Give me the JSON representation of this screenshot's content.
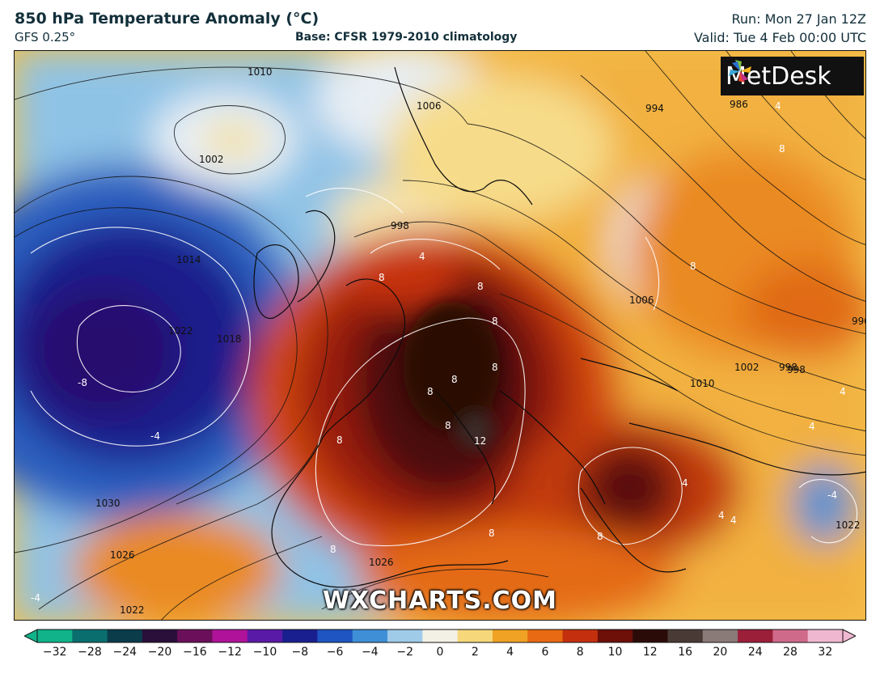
{
  "header": {
    "title": "850 hPa Temperature Anomaly (°C)",
    "model": "GFS 0.25°",
    "base": "Base: CFSR 1979-2010 climatology",
    "run": "Run: Mon 27 Jan 12Z",
    "valid": "Valid: Tue 4 Feb 00:00 UTC"
  },
  "logo": {
    "text": "MetDesk",
    "icon": "metdesk-pinwheel-icon"
  },
  "watermark": "WXCHARTS.COM",
  "colorbar": {
    "ticks": [
      "−32",
      "−28",
      "−24",
      "−20",
      "−16",
      "−12",
      "−10",
      "−8",
      "−6",
      "−4",
      "−2",
      "0",
      "2",
      "4",
      "6",
      "8",
      "10",
      "12",
      "16",
      "20",
      "24",
      "28",
      "32"
    ],
    "colors": [
      "#10b38a",
      "#0b6e6e",
      "#0a3c4a",
      "#2a0f3a",
      "#6b0f5a",
      "#b0129a",
      "#5a1aa8",
      "#1a1f8f",
      "#1f55c2",
      "#3f8fd6",
      "#9fcbe9",
      "#f3f0e6",
      "#f6d77a",
      "#f0a225",
      "#e86a12",
      "#c4300e",
      "#6e0f08",
      "#2b0b08",
      "#4a3a36",
      "#8a7a78",
      "#9c1f3a",
      "#d06a8a",
      "#f0b8d0"
    ],
    "under_color": "#10b38a",
    "over_color": "#f0b8d0"
  },
  "contour_labels": {
    "pressure": [
      "1010",
      "1006",
      "1002",
      "998",
      "994",
      "986",
      "1014",
      "1018",
      "1022",
      "1030",
      "1026",
      "1022",
      "998",
      "1006",
      "1002",
      "1010",
      "990",
      "998",
      "1026",
      "1022"
    ],
    "anomaly": [
      "-4",
      "-8",
      "-4",
      "4",
      "8",
      "8",
      "8",
      "8",
      "8",
      "8",
      "12",
      "8",
      "8",
      "8",
      "8",
      "8",
      "4",
      "4",
      "4",
      "4",
      "8",
      "8",
      "4",
      "-4",
      "4"
    ]
  }
}
